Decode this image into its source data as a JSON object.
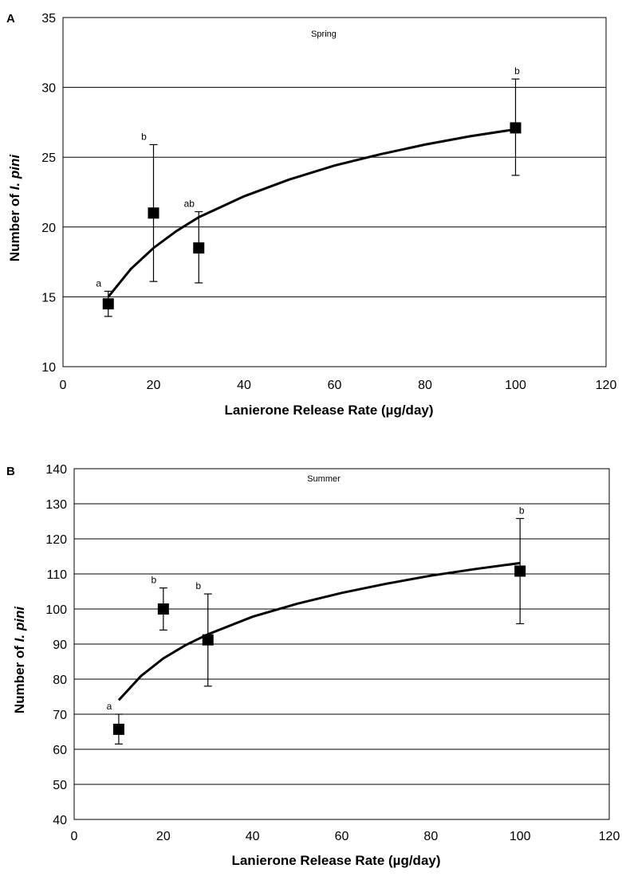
{
  "chart_data": [
    {
      "type": "scatter",
      "panel_label": "A",
      "title": "Spring",
      "xlabel": "Lanierone Release Rate (µg/day)",
      "ylabel_prefix": "Number of ",
      "ylabel_italic": "I. pini",
      "xlim": [
        0,
        120
      ],
      "ylim": [
        10,
        35
      ],
      "xticks": [
        0,
        20,
        40,
        60,
        80,
        100,
        120
      ],
      "yticks": [
        10,
        15,
        20,
        25,
        30,
        35
      ],
      "grid": "horizontal",
      "legend": "none",
      "points": [
        {
          "x": 10,
          "y": 14.5,
          "err_low": 13.6,
          "err_high": 15.4,
          "letter": "a"
        },
        {
          "x": 20,
          "y": 21.0,
          "err_low": 16.1,
          "err_high": 25.9,
          "letter": "b"
        },
        {
          "x": 30,
          "y": 18.5,
          "err_low": 16.0,
          "err_high": 21.1,
          "letter": "ab"
        },
        {
          "x": 100,
          "y": 27.1,
          "err_low": 23.7,
          "err_high": 30.6,
          "letter": "b"
        }
      ],
      "fit": {
        "type": "logarithmic",
        "x": [
          10,
          15,
          20,
          25,
          30,
          40,
          50,
          60,
          70,
          80,
          90,
          100
        ],
        "y": [
          15.0,
          17.0,
          18.5,
          19.7,
          20.7,
          22.2,
          23.4,
          24.4,
          25.2,
          25.9,
          26.5,
          27.0
        ]
      }
    },
    {
      "type": "scatter",
      "panel_label": "B",
      "title": "Summer",
      "xlabel": "Lanierone Release Rate (µg/day)",
      "ylabel_prefix": "Number of ",
      "ylabel_italic": "I. pini",
      "xlim": [
        0,
        120
      ],
      "ylim": [
        40,
        140
      ],
      "xticks": [
        0,
        20,
        40,
        60,
        80,
        100,
        120
      ],
      "yticks": [
        40,
        50,
        60,
        70,
        80,
        90,
        100,
        110,
        120,
        130,
        140
      ],
      "grid": "horizontal",
      "legend": "none",
      "points": [
        {
          "x": 10,
          "y": 65.7,
          "err_low": 61.5,
          "err_high": 70.0,
          "letter": "a"
        },
        {
          "x": 20,
          "y": 100.0,
          "err_low": 94.0,
          "err_high": 106.0,
          "letter": "b"
        },
        {
          "x": 30,
          "y": 91.2,
          "err_low": 78.0,
          "err_high": 104.3,
          "letter": "b"
        },
        {
          "x": 100,
          "y": 110.8,
          "err_low": 95.8,
          "err_high": 125.8,
          "letter": "b"
        }
      ],
      "fit": {
        "type": "logarithmic",
        "x": [
          10,
          15,
          20,
          25,
          30,
          40,
          50,
          60,
          70,
          80,
          90,
          100
        ],
        "y": [
          74.0,
          80.9,
          85.9,
          89.7,
          92.8,
          97.8,
          101.5,
          104.6,
          107.2,
          109.5,
          111.4,
          113.1
        ]
      }
    }
  ]
}
